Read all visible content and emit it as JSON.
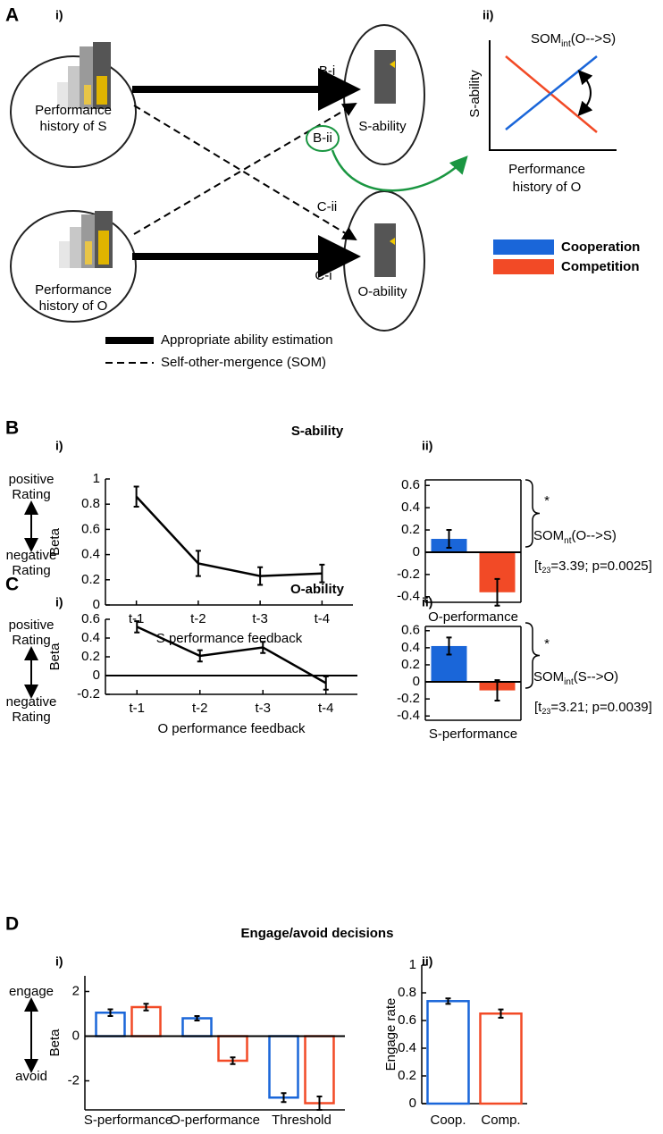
{
  "panel_a": {
    "label": "A",
    "sub_i": "i)",
    "sub_ii": "ii)",
    "nodes": [
      {
        "label": [
          "Performance",
          "history of S"
        ]
      },
      {
        "label": [
          "S-ability"
        ]
      },
      {
        "label": [
          "Performance",
          "history of O"
        ]
      },
      {
        "label": [
          "O-ability"
        ]
      }
    ],
    "edges": [
      "B-i",
      "B-ii",
      "C-ii",
      "C-i"
    ],
    "legend": [
      "Appropriate ability estimation",
      "Self-other-mergence (SOM)"
    ],
    "inset": {
      "title": [
        "SOM",
        "int",
        "(O-->S)"
      ],
      "ylabel": "S-ability",
      "xlabel": [
        "Performance",
        "history of O"
      ]
    }
  },
  "sections": [
    {
      "label": "B",
      "title": "S-ability",
      "sub": [
        "i)",
        "ii)"
      ]
    },
    {
      "label": "C",
      "title": "O-ability",
      "sub": [
        "i)",
        "ii)"
      ]
    },
    {
      "label": "D",
      "title": "Engage/avoid decisions",
      "sub": [
        "i)",
        "ii)"
      ]
    }
  ],
  "chart_data": [
    {
      "type": "line",
      "categories": [
        "t-1",
        "t-2",
        "t-3",
        "t-4"
      ],
      "values": [
        0.86,
        0.33,
        0.23,
        0.25
      ],
      "errors": [
        0.08,
        0.1,
        0.07,
        0.07
      ],
      "color": "#000000",
      "xlabel": "S performance feedback",
      "ylabel": "Beta",
      "ylim": [
        0,
        1
      ],
      "yticks": [
        0,
        0.2,
        0.4,
        0.6,
        0.8,
        1
      ],
      "annotations": {
        "top": [
          "positive",
          "Rating"
        ],
        "bottom": [
          "negative",
          "Rating"
        ]
      }
    },
    {
      "type": "bar",
      "categories": [
        "O-performance"
      ],
      "fill": true,
      "box": true,
      "zero_line": true,
      "series": [
        {
          "name": "Cooperation",
          "color": "#1a66d9",
          "values": [
            0.12
          ],
          "errors": [
            0.08
          ]
        },
        {
          "name": "Competition",
          "color": "#f24a26",
          "values": [
            -0.36
          ],
          "errors": [
            0.12
          ]
        }
      ],
      "ylim": [
        -0.45,
        0.65
      ],
      "yticks": [
        -0.4,
        -0.2,
        0,
        0.2,
        0.4,
        0.6
      ],
      "note": {
        "star": "*",
        "label": [
          "SOM",
          "nt",
          "(O-->S)"
        ],
        "stats": [
          "[t",
          "23",
          "=3.39; p=0.0025]"
        ]
      }
    },
    {
      "type": "line",
      "categories": [
        "t-1",
        "t-2",
        "t-3",
        "t-4"
      ],
      "values": [
        0.52,
        0.21,
        0.3,
        -0.08
      ],
      "errors": [
        0.06,
        0.06,
        0.06,
        0.07
      ],
      "color": "#000000",
      "xlabel": "O performance feedback",
      "ylabel": "Beta",
      "ylim": [
        -0.2,
        0.6
      ],
      "yticks": [
        -0.2,
        0,
        0.2,
        0.4,
        0.6
      ],
      "zero_line": true,
      "annotations": {
        "top": [
          "positive",
          "Rating"
        ],
        "bottom": [
          "negative",
          "Rating"
        ]
      }
    },
    {
      "type": "bar",
      "categories": [
        "S-performance"
      ],
      "fill": true,
      "box": true,
      "zero_line": true,
      "series": [
        {
          "color": "#1a66d9",
          "values": [
            0.42
          ],
          "errors": [
            0.1
          ]
        },
        {
          "color": "#f24a26",
          "values": [
            -0.1
          ],
          "errors": [
            0.12
          ]
        }
      ],
      "ylim": [
        -0.45,
        0.65
      ],
      "yticks": [
        -0.4,
        -0.2,
        0,
        0.2,
        0.4,
        0.6
      ],
      "note": {
        "star": "*",
        "label": [
          "SOM",
          "int",
          "(S-->O)"
        ],
        "stats": [
          "[t",
          "23",
          "=3.21; p=0.0039]"
        ]
      }
    },
    {
      "type": "bar",
      "categories": [
        "S-performance",
        "O-performance",
        "Threshold"
      ],
      "fill": false,
      "zero_line": true,
      "series": [
        {
          "color": "#1a66d9",
          "values": [
            1.05,
            0.8,
            -2.75
          ],
          "errors": [
            0.15,
            0.1,
            0.2
          ]
        },
        {
          "color": "#f24a26",
          "values": [
            1.3,
            -1.1,
            -3.0
          ],
          "errors": [
            0.15,
            0.15,
            0.3
          ]
        }
      ],
      "ylabel": "Beta",
      "ylim": [
        -3.3,
        2.7
      ],
      "yticks": [
        -2,
        0,
        2
      ],
      "annotations": {
        "top": [
          "engage"
        ],
        "bottom": [
          "avoid"
        ]
      }
    },
    {
      "type": "bar",
      "categories": [
        "Coop.",
        "Comp."
      ],
      "fill": false,
      "series": [
        {
          "colors": [
            "#1a66d9",
            "#f24a26"
          ],
          "values": [
            0.74,
            0.65
          ],
          "errors": [
            0.02,
            0.03
          ]
        }
      ],
      "ylabel": "Engage rate",
      "ylim": [
        0,
        1
      ],
      "yticks": [
        0,
        0.2,
        0.4,
        0.6,
        0.8,
        1
      ]
    }
  ]
}
